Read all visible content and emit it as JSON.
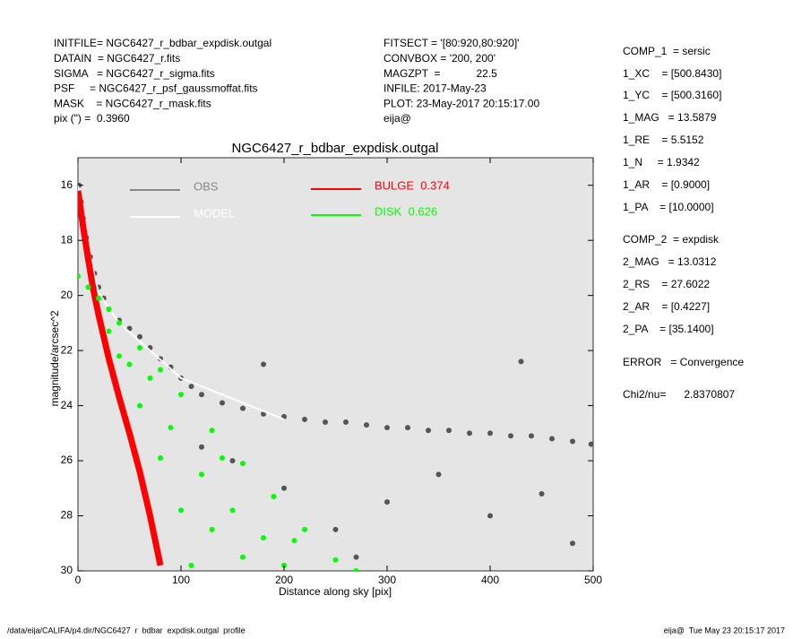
{
  "header": {
    "left": [
      "INITFILE= NGC6427_r_bdbar_expdisk.outgal",
      "DATAIN  = NGC6427_r.fits",
      "SIGMA   = NGC6427_r_sigma.fits",
      "PSF     = NGC6427_r_psf_gaussmoffat.fits",
      "MASK    = NGC6427_r_mask.fits",
      "pix (\") =  0.3960"
    ],
    "middle": [
      "FITSECT = '[80:920,80:920]'",
      "CONVBOX = '200, 200'",
      "MAGZPT  =            22.5",
      "INFILE: 2017-May-23",
      "PLOT: 23-May-2017 20:15:17.00",
      "eija@"
    ]
  },
  "sidebar": [
    "COMP_1  = sersic",
    "1_XC    = [500.8430]",
    "1_YC    = [500.3160]",
    "1_MAG   = 13.5879",
    "1_RE    = 5.5152",
    "1_N     = 1.9342",
    "1_AR    = [0.9000]",
    "1_PA    = [10.0000]",
    "COMP_2  = expdisk",
    "2_MAG   = 13.0312",
    "2_RS    = 27.6022",
    "2_AR    = [0.4227]",
    "2_PA    = [35.1400]",
    "ERROR   = Convergence",
    "Chi2/nu=      2.8370807"
  ],
  "footer": {
    "left": "/data/eija/CALIFA/p4.dir/NGC6427_r_bdbar_expdisk.outgal_profile",
    "right": "eija@  Tue May 23 20:15:17 2017"
  },
  "chart_data": {
    "type": "scatter",
    "title": "NGC6427_r_bdbar_expdisk.outgal",
    "x_label": "Distance along sky [pix]",
    "y_label": "magnitude/arcsec^2",
    "xlim": [
      0,
      500
    ],
    "ylim": [
      30,
      15
    ],
    "xticks": [
      0,
      100,
      200,
      300,
      400,
      500
    ],
    "yticks": [
      16,
      18,
      20,
      22,
      24,
      26,
      28,
      30
    ],
    "background": "#e5e5e5",
    "series": [
      {
        "name": "OBS",
        "color": "#555555",
        "legend_color": "#888888",
        "style": "points",
        "x": [
          1,
          3,
          5,
          8,
          12,
          16,
          20,
          25,
          30,
          40,
          50,
          60,
          70,
          80,
          90,
          100,
          110,
          120,
          140,
          160,
          180,
          200,
          220,
          240,
          260,
          280,
          300,
          320,
          340,
          360,
          380,
          400,
          420,
          440,
          460,
          480,
          498,
          150,
          200,
          250,
          300,
          350,
          400,
          450,
          480,
          120,
          180,
          430,
          270
        ],
        "values": [
          16.0,
          16.6,
          17.2,
          17.9,
          18.6,
          19.2,
          19.7,
          20.1,
          20.5,
          20.9,
          21.2,
          21.5,
          21.9,
          22.3,
          22.6,
          23.0,
          23.3,
          23.6,
          23.9,
          24.1,
          24.3,
          24.4,
          24.5,
          24.6,
          24.6,
          24.7,
          24.8,
          24.8,
          24.9,
          24.9,
          25.0,
          25.0,
          25.1,
          25.1,
          25.2,
          25.3,
          25.4,
          26.0,
          27.0,
          28.5,
          27.5,
          26.5,
          28.0,
          27.2,
          29.0,
          25.5,
          22.5,
          22.4,
          29.5
        ]
      },
      {
        "name": "MODEL",
        "color": "#ffffff",
        "style": "line",
        "x": [
          0,
          5,
          10,
          20,
          40,
          100,
          200
        ],
        "values": [
          16.0,
          17.3,
          18.3,
          19.9,
          21.0,
          23.0,
          24.5
        ]
      },
      {
        "name": "BULGE  0.374",
        "color": "#ff0000",
        "style": "line",
        "x": [
          0,
          5,
          10,
          15,
          20,
          25,
          30,
          40,
          50,
          60,
          70,
          80
        ],
        "values": [
          16.2,
          17.5,
          18.7,
          19.8,
          20.7,
          21.5,
          22.3,
          23.7,
          25.0,
          26.4,
          28.0,
          29.8
        ]
      },
      {
        "name": "DISK  0.626",
        "color": "#00ff00",
        "style": "points",
        "x": [
          0,
          10,
          20,
          30,
          30,
          40,
          40,
          60,
          60,
          80,
          80,
          100,
          100,
          110,
          130,
          130,
          160,
          160,
          190,
          200,
          220,
          250,
          270,
          90,
          120,
          150,
          180,
          70,
          50,
          140,
          210
        ],
        "values": [
          19.3,
          19.7,
          20.1,
          20.5,
          21.3,
          21.0,
          22.2,
          21.9,
          24.0,
          22.7,
          25.9,
          23.6,
          27.8,
          29.8,
          24.9,
          28.5,
          26.1,
          29.5,
          27.3,
          29.8,
          28.5,
          29.6,
          30.0,
          24.8,
          26.5,
          27.8,
          28.8,
          23.0,
          22.5,
          25.9,
          28.9
        ]
      }
    ]
  }
}
